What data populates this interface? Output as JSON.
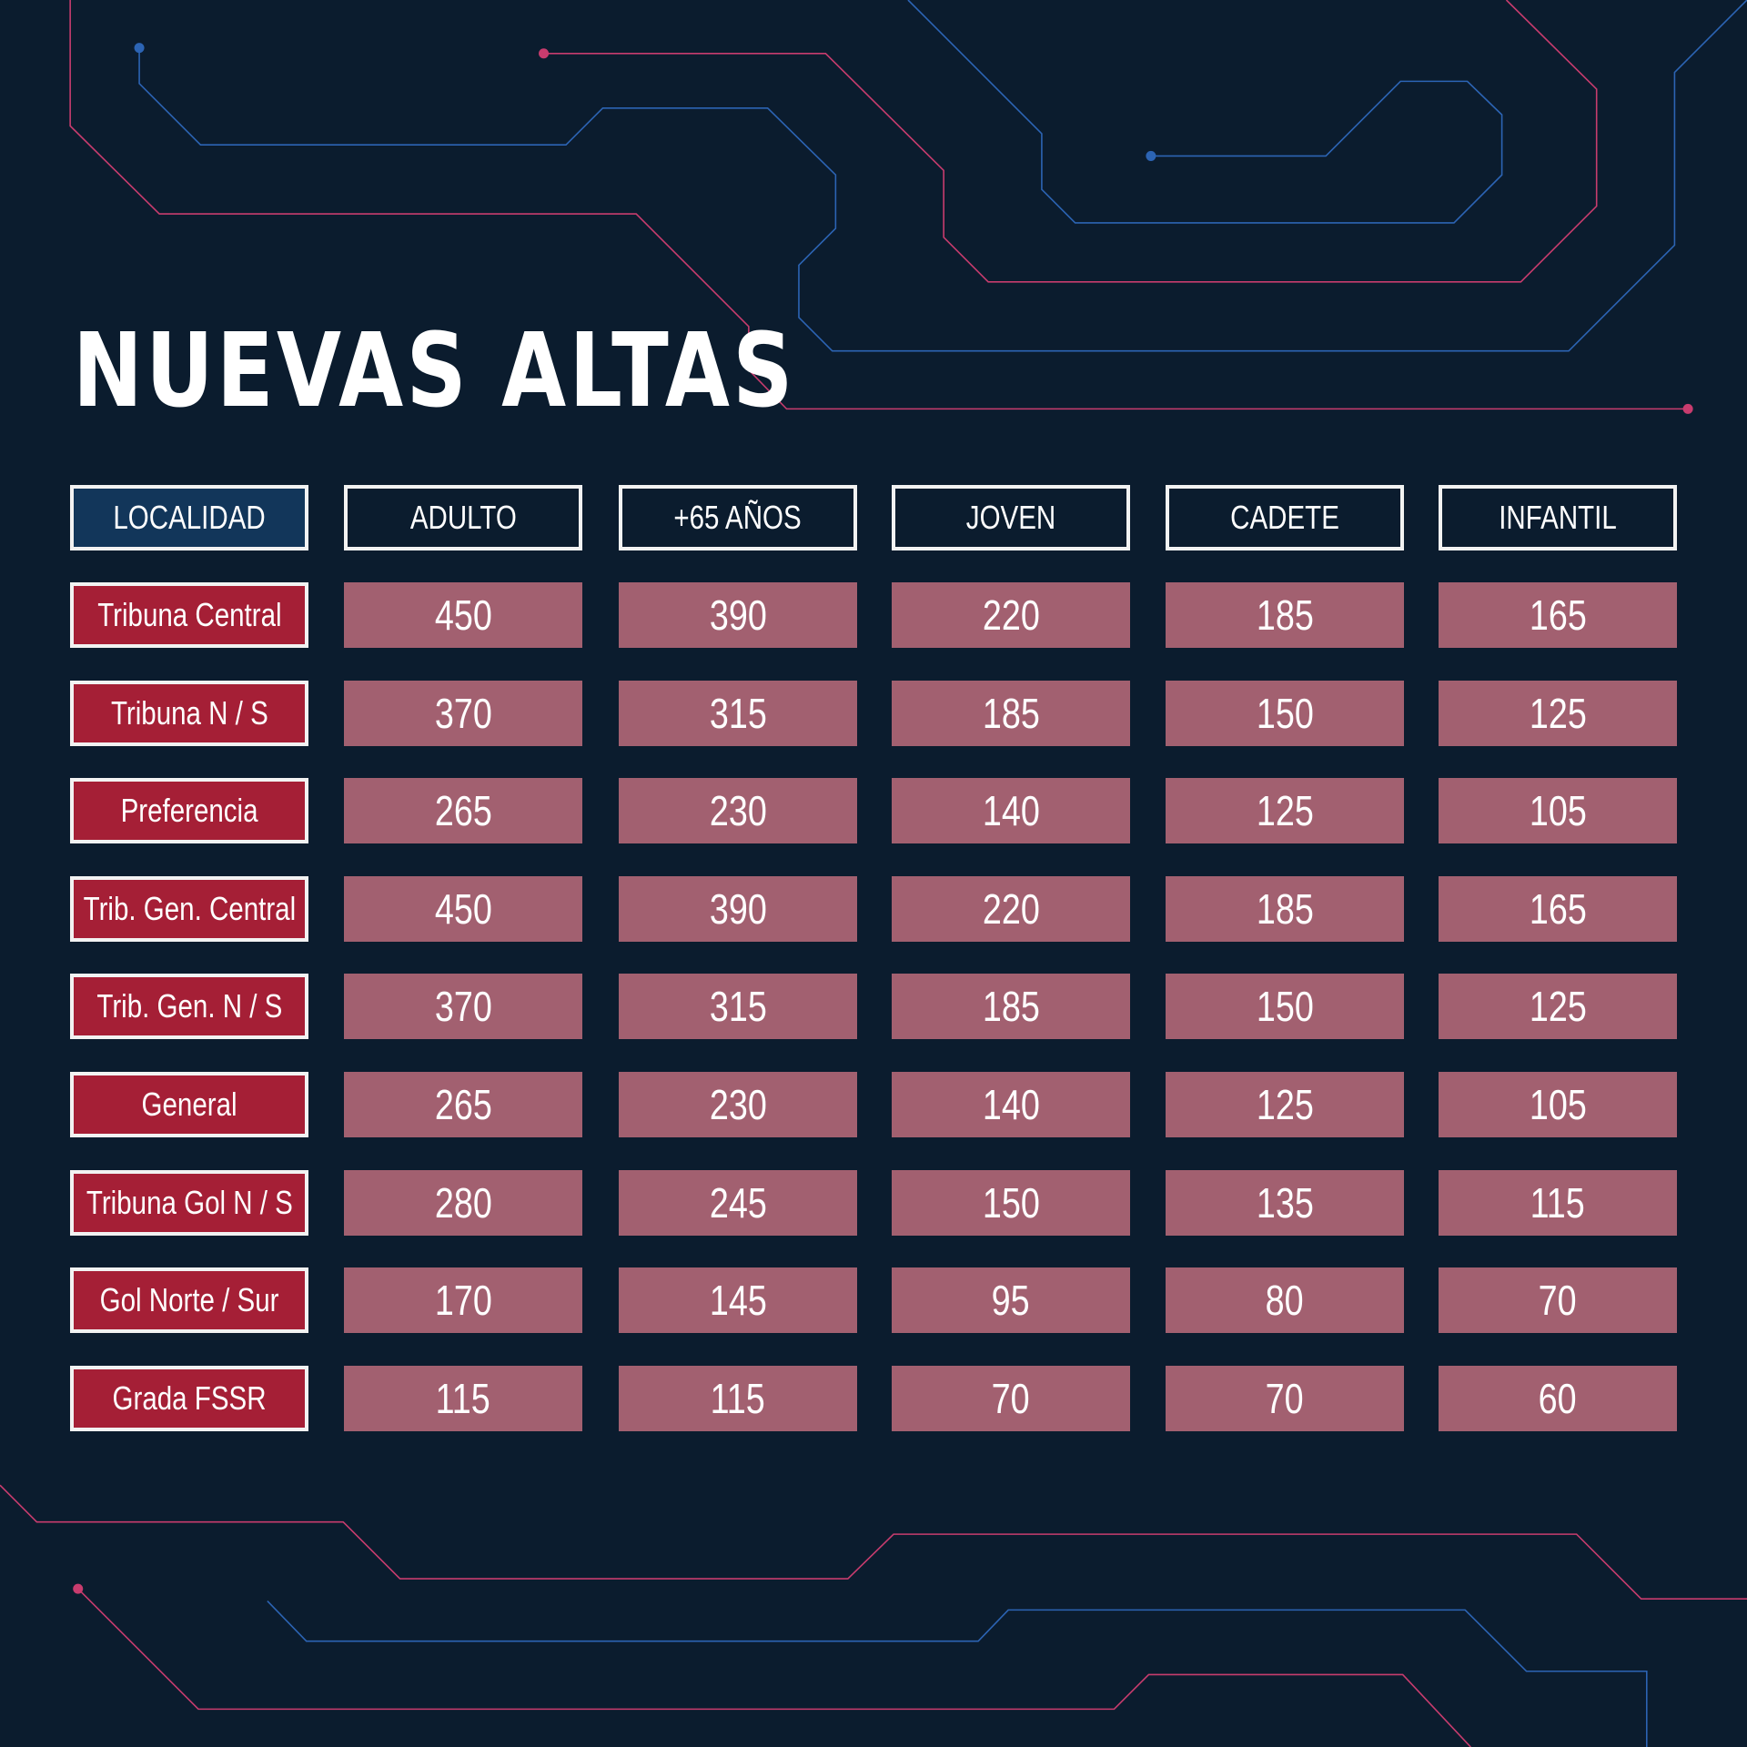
{
  "title": "NUEVAS ALTAS",
  "colors": {
    "background": "#0b1c2e",
    "header_highlight": "#12365a",
    "row_label": "#a51f36",
    "value_cell": "#a26070",
    "circuit_blue": "#2c64b4",
    "circuit_pink": "#c83c6e"
  },
  "table": {
    "headers": [
      "LOCALIDAD",
      "ADULTO",
      "+65 AÑOS",
      "JOVEN",
      "CADETE",
      "INFANTIL"
    ],
    "rows": [
      {
        "label": "Tribuna Central",
        "values": [
          "450",
          "390",
          "220",
          "185",
          "165"
        ]
      },
      {
        "label": "Tribuna N / S",
        "values": [
          "370",
          "315",
          "185",
          "150",
          "125"
        ]
      },
      {
        "label": "Preferencia",
        "values": [
          "265",
          "230",
          "140",
          "125",
          "105"
        ]
      },
      {
        "label": "Trib. Gen. Central",
        "values": [
          "450",
          "390",
          "220",
          "185",
          "165"
        ]
      },
      {
        "label": "Trib. Gen. N / S",
        "values": [
          "370",
          "315",
          "185",
          "150",
          "125"
        ]
      },
      {
        "label": "General",
        "values": [
          "265",
          "230",
          "140",
          "125",
          "105"
        ]
      },
      {
        "label": "Tribuna Gol N / S",
        "values": [
          "280",
          "245",
          "150",
          "135",
          "115"
        ]
      },
      {
        "label": "Gol Norte / Sur",
        "values": [
          "170",
          "145",
          "95",
          "80",
          "70"
        ]
      },
      {
        "label": "Grada FSSR",
        "values": [
          "115",
          "115",
          "70",
          "70",
          "60"
        ]
      }
    ]
  }
}
